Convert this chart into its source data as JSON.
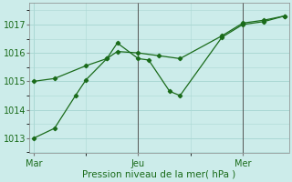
{
  "background_color": "#ccecea",
  "grid_color": "#aad8d4",
  "line_color": "#1a6b1a",
  "xlabel": "Pression niveau de la mer( hPa )",
  "ylim": [
    1012.5,
    1017.75
  ],
  "yticks": [
    1013,
    1014,
    1015,
    1016,
    1017
  ],
  "xlim": [
    -0.2,
    12.2
  ],
  "x_ticks": [
    0,
    5,
    10
  ],
  "x_tick_labels": [
    "Mar",
    "Jeu",
    "Mer"
  ],
  "vline_x": 5,
  "vline2_x": 10,
  "line1_x": [
    0,
    1,
    2.5,
    3.5,
    4,
    5,
    5.5,
    6.5,
    7,
    9,
    10,
    11,
    12
  ],
  "line1_y": [
    1015.0,
    1015.1,
    1015.55,
    1015.8,
    1016.35,
    1015.8,
    1015.75,
    1014.65,
    1014.5,
    1016.55,
    1017.0,
    1017.1,
    1017.3
  ],
  "line2_x": [
    0,
    1,
    2,
    2.5,
    3.5,
    4,
    5,
    6,
    7,
    9,
    10,
    11,
    12
  ],
  "line2_y": [
    1013.0,
    1013.35,
    1014.5,
    1015.05,
    1015.8,
    1016.05,
    1016.0,
    1015.85,
    1015.75,
    1016.6,
    1017.05,
    1017.15,
    1017.3
  ],
  "line3_x": [
    0,
    1,
    5,
    6,
    7,
    9,
    10,
    11,
    12
  ],
  "line3_y": [
    1013.0,
    1013.35,
    1016.0,
    1015.85,
    1015.75,
    1016.6,
    1017.05,
    1017.15,
    1017.3
  ]
}
